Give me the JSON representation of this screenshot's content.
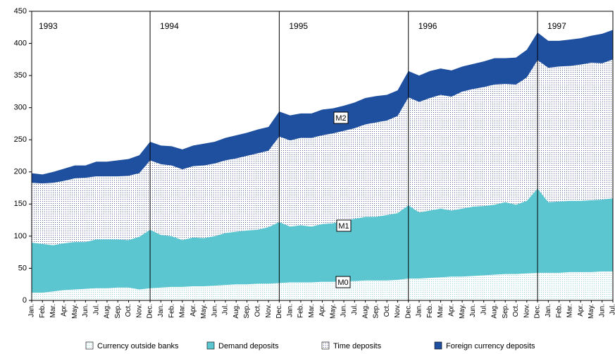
{
  "chart_data": {
    "type": "stacked_area",
    "categories": [
      "Jan.",
      "Feb.",
      "Mar.",
      "Apr.",
      "May.",
      "Jun.",
      "Jul.",
      "Aug.",
      "Sep.",
      "Oct.",
      "Nov.",
      "Dec.",
      "Jan.",
      "Feb.",
      "Mar.",
      "Apr.",
      "May.",
      "Jun.",
      "Jul.",
      "Aug.",
      "Sep.",
      "Oct.",
      "Nov.",
      "Dec.",
      "Jan.",
      "Feb.",
      "Mar.",
      "Apr.",
      "May.",
      "Jun.",
      "Jul.",
      "Aug.",
      "Sep.",
      "Oct.",
      "Nov.",
      "Dec.",
      "Jan.",
      "Feb.",
      "Mar.",
      "Apr.",
      "May.",
      "Jun.",
      "Jul.",
      "Aug.",
      "Sep.",
      "Oct.",
      "Nov.",
      "Dec.",
      "Jan.",
      "Feb.",
      "Mar.",
      "Apr.",
      "May.",
      "Jun.",
      "Jul."
    ],
    "series": [
      {
        "name": "Currency outside banks",
        "color": "#8fd3de",
        "fill_style": "dots",
        "values": [
          12,
          12,
          14,
          16,
          17,
          18,
          19,
          19,
          20,
          20,
          17,
          19,
          20,
          21,
          21,
          22,
          22,
          23,
          24,
          25,
          25,
          26,
          26,
          27,
          28,
          28,
          28,
          29,
          29,
          30,
          30,
          31,
          31,
          31,
          32,
          34,
          34,
          35,
          36,
          37,
          37,
          38,
          39,
          40,
          41,
          41,
          42,
          43,
          43,
          43,
          44,
          44,
          44,
          45,
          45
        ]
      },
      {
        "name": "Demand deposits",
        "color": "#5bc5d0",
        "values": [
          78,
          76,
          72,
          73,
          74,
          73,
          76,
          76,
          75,
          74,
          82,
          91,
          82,
          79,
          73,
          76,
          75,
          77,
          81,
          82,
          84,
          84,
          88,
          95,
          87,
          89,
          87,
          90,
          91,
          94,
          97,
          99,
          99,
          102,
          104,
          114,
          103,
          105,
          107,
          103,
          106,
          108,
          108,
          109,
          112,
          108,
          113,
          131,
          110,
          111,
          111,
          111,
          112,
          112,
          114
        ]
      },
      {
        "name": "Time deposits",
        "color": "#4a5a9a",
        "fill_style": "dots",
        "values": [
          93,
          94,
          97,
          97,
          99,
          100,
          98,
          98,
          98,
          100,
          99,
          108,
          110,
          110,
          110,
          111,
          113,
          113,
          113,
          114,
          116,
          119,
          119,
          133,
          134,
          136,
          138,
          138,
          140,
          140,
          141,
          144,
          147,
          147,
          151,
          168,
          172,
          175,
          177,
          177,
          182,
          183,
          185,
          187,
          184,
          187,
          192,
          200,
          209,
          210,
          210,
          212,
          214,
          212,
          216
        ]
      },
      {
        "name": "Foreign currency deposits",
        "color": "#1f50a0",
        "values": [
          15,
          14,
          17,
          19,
          20,
          19,
          23,
          23,
          25,
          26,
          28,
          29,
          29,
          30,
          31,
          32,
          34,
          34,
          35,
          36,
          36,
          37,
          37,
          39,
          39,
          38,
          38,
          40,
          39,
          39,
          40,
          41,
          41,
          40,
          40,
          41,
          41,
          42,
          41,
          41,
          39,
          39,
          40,
          41,
          40,
          42,
          43,
          43,
          42,
          40,
          41,
          41,
          42,
          46,
          46
        ]
      }
    ],
    "annotations": [
      "1993",
      "1994",
      "1995",
      "1996",
      "1997"
    ],
    "aggregate_labels": [
      "M0",
      "M1",
      "M2"
    ],
    "ylim": [
      0,
      450
    ],
    "yticks": [
      0,
      50,
      100,
      150,
      200,
      250,
      300,
      350,
      400,
      450
    ],
    "legend": "bottom"
  }
}
